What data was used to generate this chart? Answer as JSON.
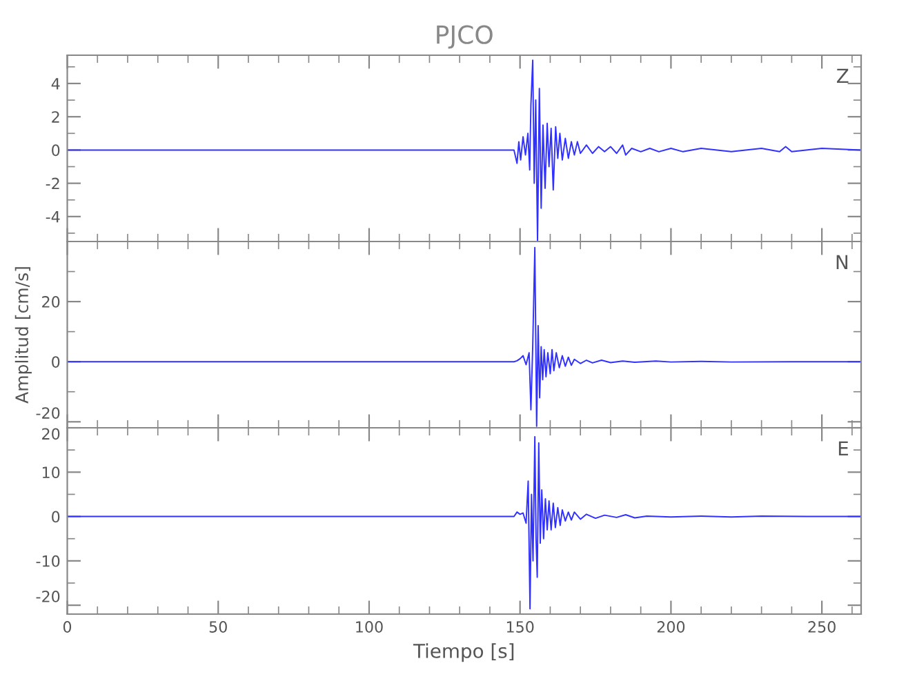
{
  "chart_data": [
    {
      "type": "line",
      "title": "PJCO",
      "annotations": [
        "Z"
      ],
      "xlim": [
        0,
        263
      ],
      "xticks": [
        0,
        50,
        100,
        150,
        200,
        250
      ],
      "ylim": [
        -5.5,
        5.7
      ],
      "yticks": [
        -4,
        -2,
        0,
        2,
        4
      ],
      "tick_labels": "y",
      "grid": false,
      "series": [
        {
          "color": "#3030ff",
          "x": [
            0,
            148,
            149,
            149.6,
            150.2,
            151,
            151.8,
            152.6,
            153.2,
            153.6,
            154.2,
            154.7,
            155.2,
            155.8,
            156.4,
            157,
            157.6,
            158.3,
            159,
            159.6,
            160.3,
            161,
            161.8,
            162.5,
            163.2,
            164,
            165,
            166,
            167,
            168,
            169,
            170,
            172,
            174,
            176,
            178,
            180,
            182,
            184,
            185,
            187,
            190,
            193,
            196,
            200,
            204,
            210,
            220,
            230,
            236,
            238,
            240,
            250,
            263
          ],
          "values": [
            0,
            0,
            -0.8,
            0.5,
            -0.6,
            0.8,
            -0.3,
            1.0,
            -1.2,
            2.7,
            5.4,
            -2.0,
            3.0,
            -5.5,
            3.7,
            -3.5,
            1.5,
            -2.3,
            1.6,
            -1.0,
            1.3,
            -2.4,
            1.4,
            -0.5,
            1.0,
            -0.6,
            0.7,
            -0.5,
            0.5,
            -0.3,
            0.5,
            -0.2,
            0.3,
            -0.2,
            0.2,
            -0.1,
            0.2,
            -0.2,
            0.3,
            -0.3,
            0.1,
            -0.1,
            0.1,
            -0.1,
            0.1,
            -0.1,
            0.1,
            -0.1,
            0.1,
            -0.1,
            0.2,
            -0.1,
            0.1,
            0
          ]
        }
      ]
    },
    {
      "type": "line",
      "ylabel": "Amplitud [cm/s]",
      "annotations": [
        "N"
      ],
      "xlim": [
        0,
        263
      ],
      "xticks": [
        0,
        50,
        100,
        150,
        200,
        250
      ],
      "ylim": [
        -22,
        40
      ],
      "yticks": [
        -20,
        0,
        20
      ],
      "tick_labels": "y",
      "grid": false,
      "series": [
        {
          "color": "#3030ff",
          "x": [
            0,
            148,
            149,
            150,
            151,
            152,
            153,
            153.6,
            154.2,
            154.9,
            155.5,
            156,
            156.5,
            157,
            157.5,
            158,
            158.6,
            159.2,
            160,
            160.6,
            161.2,
            162,
            163,
            164,
            165,
            166,
            167,
            168,
            170,
            172,
            174,
            177,
            180,
            184,
            188,
            195,
            200,
            210,
            220,
            240,
            263
          ],
          "values": [
            0,
            0,
            0.3,
            1,
            2,
            -1,
            3,
            -16,
            5,
            38,
            -21.5,
            12,
            -12,
            5,
            -6,
            4,
            -5,
            3,
            -4,
            4,
            -3,
            3,
            -2,
            2,
            -1.5,
            1.5,
            -1.2,
            0.8,
            -0.6,
            0.5,
            -0.4,
            0.5,
            -0.3,
            0.2,
            -0.2,
            0.2,
            -0.1,
            0.1,
            -0.1,
            0,
            0
          ]
        }
      ]
    },
    {
      "type": "line",
      "xlabel": "Tiempo [s]",
      "annotations": [
        "E"
      ],
      "xlim": [
        0,
        263
      ],
      "xticks": [
        0,
        50,
        100,
        150,
        200,
        250
      ],
      "ylim": [
        -22,
        20
      ],
      "yticks": [
        -20,
        -10,
        0,
        10,
        20
      ],
      "grid": false,
      "series": [
        {
          "color": "#3030ff",
          "x": [
            0,
            148,
            149,
            150,
            151,
            152,
            152.7,
            153.3,
            153.8,
            154.3,
            154.9,
            155.3,
            155.7,
            156.2,
            156.7,
            157.2,
            157.8,
            158.4,
            159,
            159.6,
            160.3,
            161,
            161.7,
            162.5,
            163.3,
            164,
            165,
            166,
            167,
            168,
            170,
            172,
            175,
            178,
            182,
            185,
            188,
            192,
            200,
            210,
            220,
            230,
            245,
            263
          ],
          "values": [
            0,
            0,
            1,
            0.5,
            0.8,
            -1.5,
            8,
            -20.8,
            5,
            -10,
            18,
            -5,
            -13.7,
            16.6,
            -6,
            6,
            -5,
            4,
            -3,
            3.5,
            -3,
            3,
            -2.5,
            2,
            -2,
            1.5,
            -1,
            1,
            -0.8,
            1,
            -0.6,
            0.5,
            -0.4,
            0.3,
            -0.2,
            0.4,
            -0.3,
            0.1,
            -0.1,
            0.1,
            -0.1,
            0.1,
            0,
            0
          ]
        }
      ]
    }
  ]
}
